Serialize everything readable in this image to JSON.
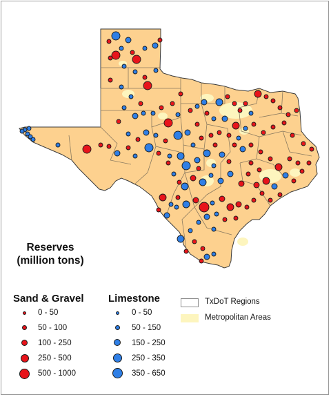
{
  "legend": {
    "title_line1": "Reserves",
    "title_line2": "(million tons)",
    "sand_gravel": {
      "heading": "Sand & Gravel",
      "color": "#e8141b",
      "classes": [
        "0 - 50",
        "50 - 100",
        "100 - 250",
        "250 - 500",
        "500 - 1000"
      ]
    },
    "limestone": {
      "heading": "Limestone",
      "color": "#2f7fe6",
      "classes": [
        "0 - 50",
        "50 - 150",
        "150 - 250",
        "250 - 350",
        "350 - 650"
      ]
    },
    "txdot_regions": "TxDoT Regions",
    "metro_areas": "Metropolitan Areas"
  },
  "colors": {
    "land": "#fdd18f",
    "metro": "#fdf5be",
    "region_line": "#8a7a60",
    "sand_gravel": "#e8141b",
    "limestone": "#2f7fe6"
  }
}
